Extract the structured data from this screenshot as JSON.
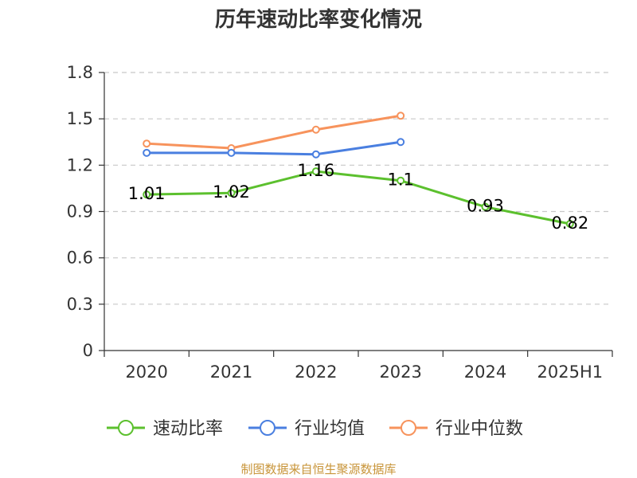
{
  "chart_data": {
    "type": "line",
    "title": "历年速动比率变化情况",
    "xlabel": "",
    "ylabel": "",
    "categories": [
      "2020",
      "2021",
      "2022",
      "2023",
      "2024",
      "2025H1"
    ],
    "ylim": [
      0,
      1.8
    ],
    "yticks": [
      "0",
      "0.3",
      "0.6",
      "0.9",
      "1.2",
      "1.5",
      "1.8"
    ],
    "grid": true,
    "legend_position": "bottom",
    "series": [
      {
        "name": "速动比率",
        "color": "#5cc02e",
        "values": [
          1.01,
          1.02,
          1.16,
          1.1,
          0.93,
          0.82
        ],
        "labels": [
          "1.01",
          "1.02",
          "1.16",
          "1.1",
          "0.93",
          "0.82"
        ]
      },
      {
        "name": "行业均值",
        "color": "#4a7fe0",
        "values": [
          1.28,
          1.28,
          1.27,
          1.35,
          null,
          null
        ]
      },
      {
        "name": "行业中位数",
        "color": "#f7935c",
        "values": [
          1.34,
          1.31,
          1.43,
          1.52,
          null,
          null
        ]
      }
    ]
  },
  "source_note": "制图数据来自恒生聚源数据库"
}
